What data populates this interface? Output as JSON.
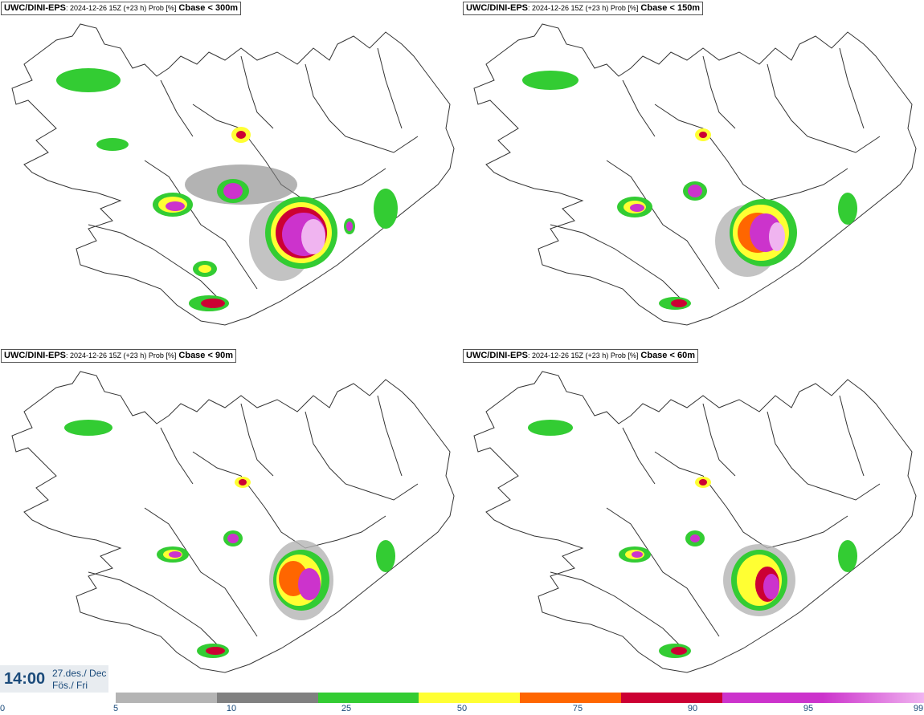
{
  "panels": [
    {
      "model": "UWC/DINI-EPS",
      "run": ": 2024-12-26 15Z (+23 h) Prob [%]",
      "var": "Cbase < 300m"
    },
    {
      "model": "UWC/DINI-EPS",
      "run": ": 2024-12-26 15Z (+23 h) Prob [%]",
      "var": "Cbase < 150m"
    },
    {
      "model": "UWC/DINI-EPS",
      "run": ": 2024-12-26 15Z (+23 h) Prob [%]",
      "var": "Cbase < 90m"
    },
    {
      "model": "UWC/DINI-EPS",
      "run": ": 2024-12-26 15Z (+23 h) Prob [%]",
      "var": "Cbase < 60m"
    }
  ],
  "time": {
    "clock": "14:00",
    "date_line1": "27.des./ Dec",
    "date_line2": "Fös./ Fri"
  },
  "legend": {
    "ticks": [
      "0",
      "5",
      "10",
      "25",
      "50",
      "75",
      "90",
      "95",
      "99"
    ],
    "colors": [
      "#b4b4b4",
      "#808080",
      "#33cc33",
      "#ffff33",
      "#ff6600",
      "#cc0033",
      "#cc33cc",
      "#f0b4f0"
    ]
  }
}
